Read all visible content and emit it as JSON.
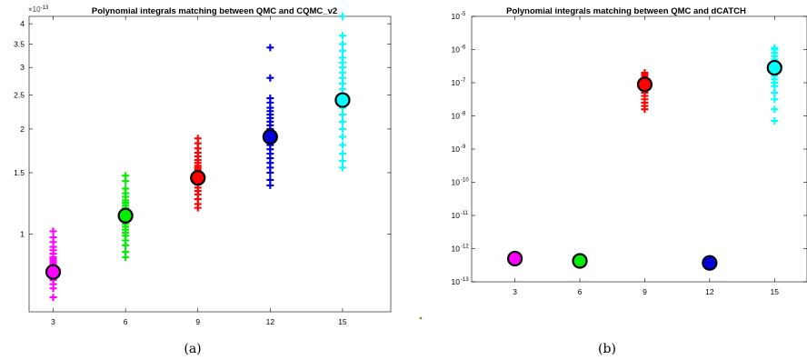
{
  "chart_data": [
    {
      "type": "scatter",
      "title": "Polynomial integrals matching between QMC and CQMC_v2",
      "caption": "(a)",
      "y_multiplier": "×10",
      "y_multiplier_exponent": "-13",
      "y_scale": "log",
      "xlim": [
        2,
        17
      ],
      "ylim": [
        0.6,
        4.2
      ],
      "x_ticks": [
        "3",
        "6",
        "9",
        "12",
        "15"
      ],
      "y_ticks": [
        {
          "value": 1,
          "label": "1"
        },
        {
          "value": 1.5,
          "label": "1.5"
        },
        {
          "value": 2,
          "label": "2"
        },
        {
          "value": 2.5,
          "label": "2.5"
        },
        {
          "value": 3,
          "label": "3"
        },
        {
          "value": 3.5,
          "label": "3.5"
        },
        {
          "value": 4,
          "label": "4"
        }
      ],
      "series": [
        {
          "x": 3,
          "color": "#ff00ff",
          "mean": 0.78,
          "values": [
            0.66,
            0.7,
            0.72,
            0.74,
            0.75,
            0.76,
            0.77,
            0.78,
            0.79,
            0.8,
            0.81,
            0.82,
            0.83,
            0.84,
            0.85,
            0.86,
            0.88,
            0.9,
            0.92,
            0.95,
            0.98,
            1.02
          ]
        },
        {
          "x": 6,
          "color": "#00ee00",
          "mean": 1.13,
          "values": [
            0.86,
            0.89,
            0.93,
            0.96,
            0.99,
            1.01,
            1.03,
            1.05,
            1.07,
            1.09,
            1.11,
            1.13,
            1.15,
            1.17,
            1.19,
            1.21,
            1.23,
            1.25,
            1.28,
            1.31,
            1.35,
            1.42,
            1.47
          ]
        },
        {
          "x": 9,
          "color": "#ff0000",
          "mean": 1.45,
          "values": [
            1.19,
            1.22,
            1.26,
            1.3,
            1.33,
            1.36,
            1.39,
            1.41,
            1.43,
            1.45,
            1.47,
            1.49,
            1.51,
            1.53,
            1.55,
            1.57,
            1.6,
            1.63,
            1.67,
            1.71,
            1.76,
            1.82,
            1.88
          ]
        },
        {
          "x": 12,
          "color": "#0000dd",
          "mean": 1.9,
          "values": [
            1.38,
            1.43,
            1.5,
            1.55,
            1.6,
            1.65,
            1.7,
            1.75,
            1.8,
            1.85,
            1.9,
            1.95,
            2.0,
            2.05,
            2.1,
            2.15,
            2.2,
            2.25,
            2.3,
            2.38,
            2.45,
            2.8,
            3.42
          ]
        },
        {
          "x": 15,
          "color": "#00ffff",
          "mean": 2.42,
          "values": [
            1.55,
            1.62,
            1.7,
            1.8,
            1.9,
            2.0,
            2.1,
            2.2,
            2.3,
            2.4,
            2.5,
            2.6,
            2.7,
            2.8,
            2.9,
            3.0,
            3.1,
            3.2,
            3.35,
            3.5,
            3.7,
            4.2
          ]
        }
      ]
    },
    {
      "type": "scatter",
      "title": "Polynomial integrals matching between QMC and dCATCH",
      "caption": "(b)",
      "y_scale": "log",
      "xlim": [
        1,
        16.5
      ],
      "ylim_exp": [
        -13,
        -5
      ],
      "x_ticks": [
        "3",
        "6",
        "9",
        "12",
        "15"
      ],
      "y_ticks": [
        {
          "exp": -13,
          "base": "10",
          "power": "-13"
        },
        {
          "exp": -12,
          "base": "10",
          "power": "-12"
        },
        {
          "exp": -11,
          "base": "10",
          "power": "-11"
        },
        {
          "exp": -10,
          "base": "10",
          "power": "-10"
        },
        {
          "exp": -9,
          "base": "10",
          "power": "-9"
        },
        {
          "exp": -8,
          "base": "10",
          "power": "-8"
        },
        {
          "exp": -7,
          "base": "10",
          "power": "-7"
        },
        {
          "exp": -6,
          "base": "10",
          "power": "-6"
        },
        {
          "exp": -5,
          "base": "10",
          "power": "-5"
        }
      ],
      "series": [
        {
          "x": 3,
          "color": "#ff00ff",
          "mean_exp": -12.3,
          "values_exp": [
            -12.4,
            -12.35,
            -12.3,
            -12.28,
            -12.25,
            -12.22
          ]
        },
        {
          "x": 6,
          "color": "#00ee00",
          "mean_exp": -12.37,
          "values_exp": [
            -12.45,
            -12.4,
            -12.37,
            -12.34,
            -12.3
          ]
        },
        {
          "x": 9,
          "color": "#ff0000",
          "mean_exp": -7.05,
          "values_exp": [
            -7.8,
            -7.7,
            -7.6,
            -7.5,
            -7.4,
            -7.3,
            -7.2,
            -7.1,
            -7.0,
            -6.9,
            -6.8,
            -6.75,
            -6.7
          ]
        },
        {
          "x": 12,
          "color": "#0000dd",
          "mean_exp": -12.43,
          "values_exp": [
            -12.5,
            -12.45,
            -12.4,
            -12.35
          ]
        },
        {
          "x": 15,
          "color": "#00ffff",
          "mean_exp": -6.55,
          "values_exp": [
            -8.15,
            -7.8,
            -7.5,
            -7.3,
            -7.1,
            -7.0,
            -6.9,
            -6.8,
            -6.7,
            -6.6,
            -6.5,
            -6.4,
            -6.3,
            -6.2,
            -6.1,
            -6.0,
            -5.95
          ]
        }
      ]
    }
  ]
}
